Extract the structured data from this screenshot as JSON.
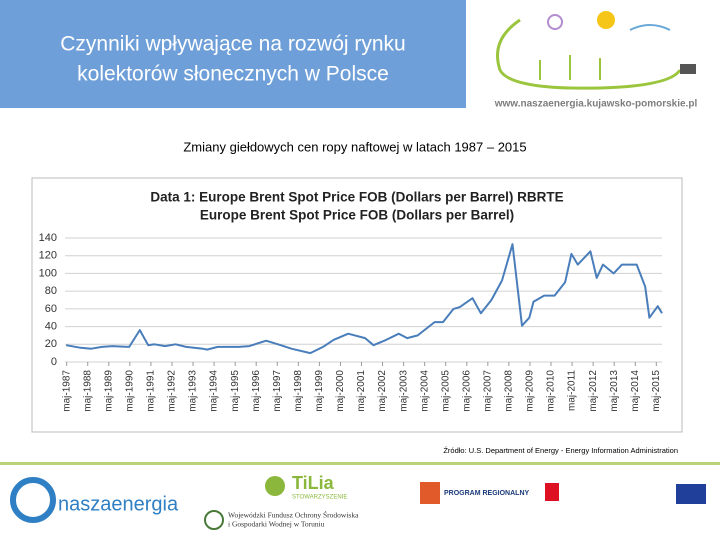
{
  "header": {
    "title": [
      "Czynniki wpływające na rozwój rynku",
      "kolektorów słonecznych w Polsce"
    ],
    "url": "www.naszaenergia.kujawsko-pomorskie.pl"
  },
  "subtitle": "Zmiany giełdowych cen ropy naftowej w latach 1987 – 2015",
  "chart_data": {
    "type": "line",
    "title": [
      "Data 1: Europe Brent Spot Price FOB (Dollars per Barrel) RBRTE",
      "Europe Brent Spot Price FOB (Dollars per Barrel)"
    ],
    "color": "#4a7ebb",
    "x": [
      1987.3,
      1988.0,
      1988.5,
      1989.0,
      1989.5,
      1990.3,
      1990.8,
      1991.2,
      1991.5,
      1992.0,
      1992.5,
      1993.0,
      1993.8,
      1994.0,
      1994.5,
      1995.0,
      1995.5,
      1996.0,
      1996.8,
      1997.5,
      1998.0,
      1998.9,
      1999.5,
      2000.0,
      2000.7,
      2001.5,
      2001.9,
      2002.5,
      2003.1,
      2003.5,
      2004.0,
      2004.8,
      2005.2,
      2005.7,
      2006.0,
      2006.6,
      2007.0,
      2007.5,
      2008.0,
      2008.5,
      2008.95,
      2009.3,
      2009.5,
      2010.0,
      2010.5,
      2011.0,
      2011.3,
      2011.6,
      2012.2,
      2012.5,
      2012.8,
      2013.3,
      2013.7,
      2014.4,
      2014.8,
      2015.0,
      2015.4,
      2015.6
    ],
    "values": [
      19,
      16,
      15,
      17,
      18,
      17,
      36,
      19,
      20,
      18,
      20,
      17,
      15,
      14,
      17,
      17,
      17,
      18,
      24,
      19,
      15,
      10,
      17,
      25,
      32,
      27,
      19,
      25,
      32,
      27,
      30,
      45,
      45,
      60,
      62,
      72,
      55,
      70,
      92,
      133,
      41,
      50,
      68,
      75,
      75,
      90,
      122,
      110,
      125,
      95,
      110,
      100,
      110,
      110,
      85,
      50,
      63,
      55
    ],
    "xlim": [
      1987.25,
      2015.6
    ],
    "ylim": [
      0,
      140
    ],
    "yticks": [
      0,
      20,
      40,
      60,
      80,
      100,
      120,
      140
    ],
    "xticks": [
      {
        "value": 1987.33,
        "label": "maj-1987"
      },
      {
        "value": 1988.33,
        "label": "maj-1988"
      },
      {
        "value": 1989.33,
        "label": "maj-1989"
      },
      {
        "value": 1990.33,
        "label": "maj-1990"
      },
      {
        "value": 1991.33,
        "label": "maj-1991"
      },
      {
        "value": 1992.33,
        "label": "maj-1992"
      },
      {
        "value": 1993.33,
        "label": "maj-1993"
      },
      {
        "value": 1994.33,
        "label": "maj-1994"
      },
      {
        "value": 1995.33,
        "label": "maj-1995"
      },
      {
        "value": 1996.33,
        "label": "maj-1996"
      },
      {
        "value": 1997.33,
        "label": "maj-1997"
      },
      {
        "value": 1998.33,
        "label": "maj-1998"
      },
      {
        "value": 1999.33,
        "label": "maj-1999"
      },
      {
        "value": 2000.33,
        "label": "maj-2000"
      },
      {
        "value": 2001.33,
        "label": "maj-2001"
      },
      {
        "value": 2002.33,
        "label": "maj-2002"
      },
      {
        "value": 2003.33,
        "label": "maj-2003"
      },
      {
        "value": 2004.33,
        "label": "maj-2004"
      },
      {
        "value": 2005.33,
        "label": "maj-2005"
      },
      {
        "value": 2006.33,
        "label": "maj-2006"
      },
      {
        "value": 2007.33,
        "label": "maj-2007"
      },
      {
        "value": 2008.33,
        "label": "maj-2008"
      },
      {
        "value": 2009.33,
        "label": "maj-2009"
      },
      {
        "value": 2010.33,
        "label": "maj-2010"
      },
      {
        "value": 2011.33,
        "label": "maj-2011"
      },
      {
        "value": 2012.33,
        "label": "maj-2012"
      },
      {
        "value": 2013.33,
        "label": "maj-2013"
      },
      {
        "value": 2014.33,
        "label": "maj-2014"
      },
      {
        "value": 2015.33,
        "label": "maj-2015"
      }
    ],
    "grid": true
  },
  "source": "Źródło: U.S. Department of Energy - Energy Information Administration",
  "footer": {
    "logo1": "naszaenergia",
    "logo2": "TiLia",
    "logo2_sub": "STOWARZYSZENIE",
    "fund": [
      "Wojewódzki Fundusz Ochrony Środowiska",
      "i Gospodarki Wodnej w Toruniu"
    ],
    "program": "PROGRAM REGIONALNY"
  }
}
